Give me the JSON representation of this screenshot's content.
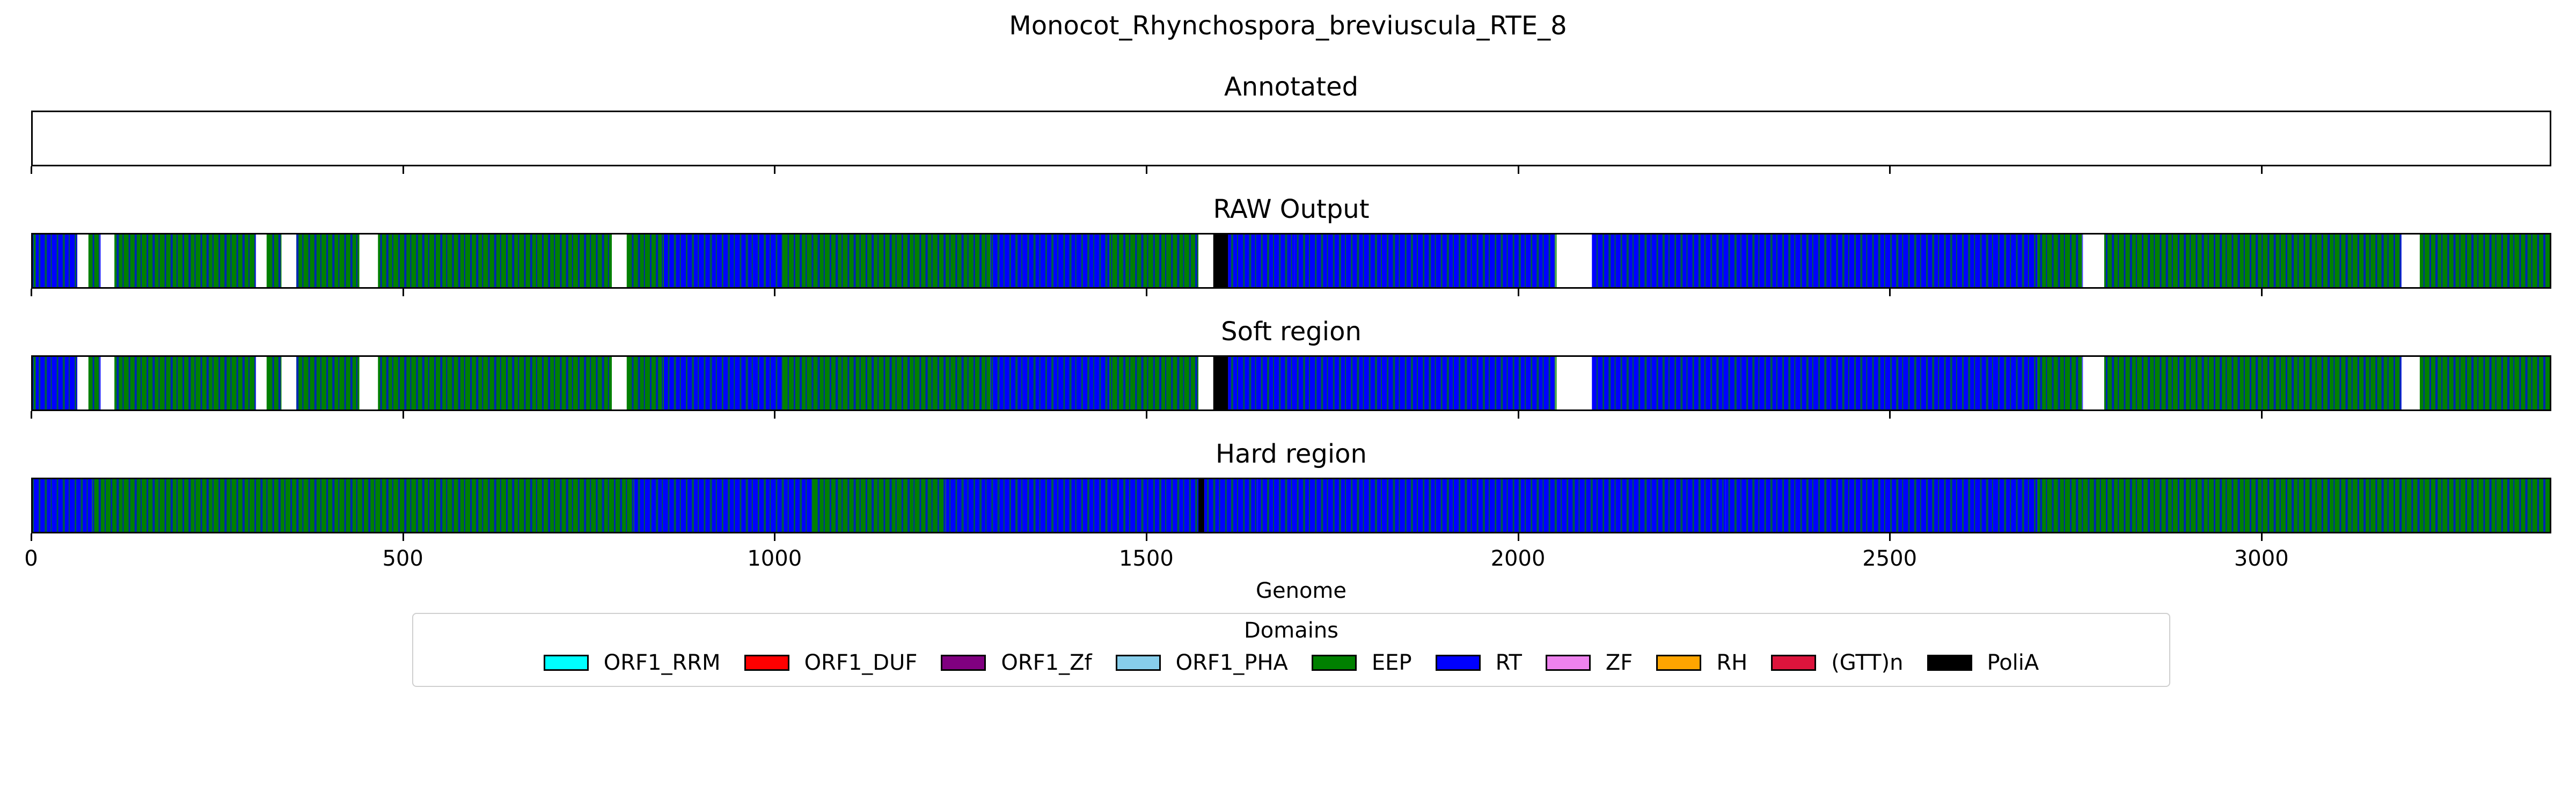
{
  "chart_data": {
    "type": "heatmap",
    "title": "Monocot_Rhynchospora_breviuscula_RTE_8",
    "xlabel": "Genome",
    "xlim": [
      0,
      3390
    ],
    "xticks": [
      "0",
      "500",
      "1000",
      "1500",
      "2000",
      "2500",
      "3000"
    ],
    "panels": [
      {
        "name": "Annotated",
        "segments": []
      },
      {
        "name": "RAW Output",
        "segments": [
          {
            "start": 0,
            "end": 4,
            "domain": "EEP"
          },
          {
            "start": 4,
            "end": 60,
            "domain": "RT"
          },
          {
            "start": 60,
            "end": 75,
            "domain": "none"
          },
          {
            "start": 75,
            "end": 90,
            "domain": "EEP"
          },
          {
            "start": 90,
            "end": 110,
            "domain": "none"
          },
          {
            "start": 110,
            "end": 300,
            "domain": "EEP"
          },
          {
            "start": 300,
            "end": 315,
            "domain": "none"
          },
          {
            "start": 315,
            "end": 335,
            "domain": "EEP"
          },
          {
            "start": 335,
            "end": 355,
            "domain": "none"
          },
          {
            "start": 355,
            "end": 440,
            "domain": "EEP"
          },
          {
            "start": 440,
            "end": 465,
            "domain": "none"
          },
          {
            "start": 465,
            "end": 780,
            "domain": "EEP"
          },
          {
            "start": 780,
            "end": 800,
            "domain": "none"
          },
          {
            "start": 800,
            "end": 850,
            "domain": "EEP"
          },
          {
            "start": 850,
            "end": 1010,
            "domain": "RT"
          },
          {
            "start": 1010,
            "end": 1290,
            "domain": "EEP"
          },
          {
            "start": 1290,
            "end": 1450,
            "domain": "RT"
          },
          {
            "start": 1450,
            "end": 1570,
            "domain": "EEP"
          },
          {
            "start": 1570,
            "end": 1590,
            "domain": "none"
          },
          {
            "start": 1590,
            "end": 1610,
            "domain": "PoliA"
          },
          {
            "start": 1610,
            "end": 1700,
            "domain": "RT"
          },
          {
            "start": 1700,
            "end": 1760,
            "domain": "RT"
          },
          {
            "start": 1760,
            "end": 2050,
            "domain": "RT"
          },
          {
            "start": 2050,
            "end": 2100,
            "domain": "none"
          },
          {
            "start": 2100,
            "end": 2700,
            "domain": "RT"
          },
          {
            "start": 2700,
            "end": 2760,
            "domain": "EEP"
          },
          {
            "start": 2760,
            "end": 2790,
            "domain": "none"
          },
          {
            "start": 2790,
            "end": 3190,
            "domain": "EEP"
          },
          {
            "start": 3190,
            "end": 3215,
            "domain": "none"
          },
          {
            "start": 3215,
            "end": 3390,
            "domain": "EEP"
          }
        ]
      },
      {
        "name": "Soft region",
        "segments": [
          {
            "start": 0,
            "end": 4,
            "domain": "EEP"
          },
          {
            "start": 4,
            "end": 60,
            "domain": "RT"
          },
          {
            "start": 60,
            "end": 75,
            "domain": "none"
          },
          {
            "start": 75,
            "end": 90,
            "domain": "EEP"
          },
          {
            "start": 90,
            "end": 110,
            "domain": "none"
          },
          {
            "start": 110,
            "end": 300,
            "domain": "EEP"
          },
          {
            "start": 300,
            "end": 315,
            "domain": "none"
          },
          {
            "start": 315,
            "end": 335,
            "domain": "EEP"
          },
          {
            "start": 335,
            "end": 355,
            "domain": "none"
          },
          {
            "start": 355,
            "end": 440,
            "domain": "EEP"
          },
          {
            "start": 440,
            "end": 465,
            "domain": "none"
          },
          {
            "start": 465,
            "end": 780,
            "domain": "EEP"
          },
          {
            "start": 780,
            "end": 800,
            "domain": "none"
          },
          {
            "start": 800,
            "end": 850,
            "domain": "EEP"
          },
          {
            "start": 850,
            "end": 1010,
            "domain": "RT"
          },
          {
            "start": 1010,
            "end": 1290,
            "domain": "EEP"
          },
          {
            "start": 1290,
            "end": 1450,
            "domain": "RT"
          },
          {
            "start": 1450,
            "end": 1570,
            "domain": "EEP"
          },
          {
            "start": 1570,
            "end": 1590,
            "domain": "none"
          },
          {
            "start": 1590,
            "end": 1610,
            "domain": "PoliA"
          },
          {
            "start": 1610,
            "end": 2050,
            "domain": "RT"
          },
          {
            "start": 2050,
            "end": 2100,
            "domain": "none"
          },
          {
            "start": 2100,
            "end": 2700,
            "domain": "RT"
          },
          {
            "start": 2700,
            "end": 2760,
            "domain": "EEP"
          },
          {
            "start": 2760,
            "end": 2790,
            "domain": "none"
          },
          {
            "start": 2790,
            "end": 3190,
            "domain": "EEP"
          },
          {
            "start": 3190,
            "end": 3215,
            "domain": "none"
          },
          {
            "start": 3215,
            "end": 3390,
            "domain": "EEP"
          }
        ]
      },
      {
        "name": "Hard region",
        "segments": [
          {
            "start": 0,
            "end": 80,
            "domain": "RT"
          },
          {
            "start": 80,
            "end": 810,
            "domain": "EEP"
          },
          {
            "start": 810,
            "end": 1050,
            "domain": "RT"
          },
          {
            "start": 1050,
            "end": 1230,
            "domain": "EEP"
          },
          {
            "start": 1230,
            "end": 1570,
            "domain": "RT"
          },
          {
            "start": 1570,
            "end": 1578,
            "domain": "PoliA"
          },
          {
            "start": 1578,
            "end": 1650,
            "domain": "RT"
          },
          {
            "start": 1650,
            "end": 2280,
            "domain": "RT"
          },
          {
            "start": 2280,
            "end": 2700,
            "domain": "RT"
          },
          {
            "start": 2700,
            "end": 3390,
            "domain": "EEP"
          }
        ]
      }
    ],
    "legend": {
      "title": "Domains",
      "placement": "bottom-center",
      "entries": [
        {
          "label": "ORF1_RRM",
          "color": "#00ffff"
        },
        {
          "label": "ORF1_DUF",
          "color": "#ff0000"
        },
        {
          "label": "ORF1_Zf",
          "color": "#800080"
        },
        {
          "label": "ORF1_PHA",
          "color": "#87ceeb"
        },
        {
          "label": "EEP",
          "color": "#008000"
        },
        {
          "label": "RT",
          "color": "#0000ff"
        },
        {
          "label": "ZF",
          "color": "#ee82ee"
        },
        {
          "label": "RH",
          "color": "#ffa500"
        },
        {
          "label": "(GTT)n",
          "color": "#dc143c"
        },
        {
          "label": "PoliA",
          "color": "#000000"
        }
      ]
    }
  }
}
